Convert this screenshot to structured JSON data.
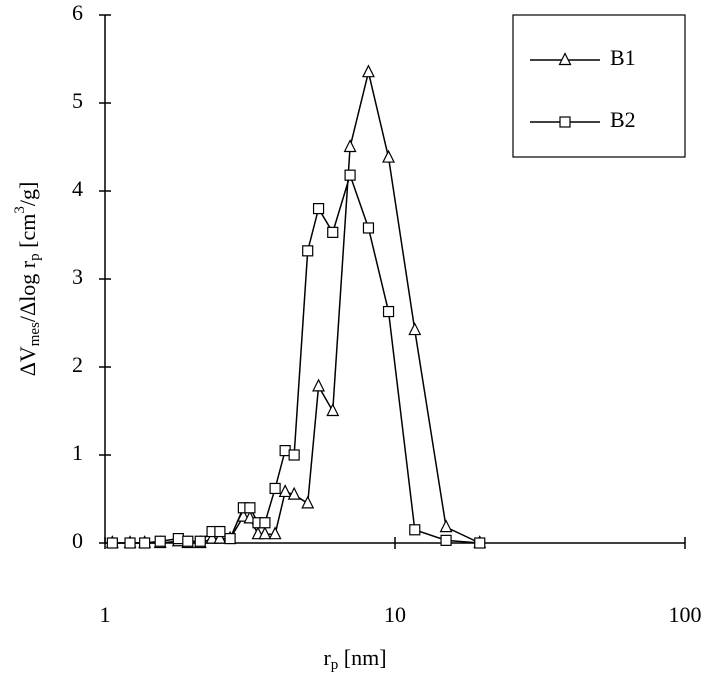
{
  "chart_data": {
    "type": "line",
    "x_label": [
      "r",
      "p",
      " [nm]"
    ],
    "y_label": [
      "ΔV",
      "mes",
      "/Δlog r",
      "p",
      " [cm",
      "3",
      "/g]"
    ],
    "xscale": "log",
    "xlim": [
      1,
      100
    ],
    "xticks": [
      1,
      10,
      100
    ],
    "ylim": [
      0,
      6
    ],
    "yticks": [
      0,
      1,
      2,
      3,
      4,
      5,
      6
    ],
    "legend": "top-right",
    "x": [
      1.06,
      1.22,
      1.37,
      1.55,
      1.79,
      1.93,
      2.13,
      2.34,
      2.49,
      2.7,
      3.0,
      3.16,
      3.37,
      3.56,
      3.86,
      4.18,
      4.49,
      5.0,
      5.45,
      6.1,
      7.0,
      8.1,
      9.5,
      11.7,
      15,
      19.6
    ],
    "series": [
      {
        "name": "B1",
        "color": "#000000",
        "marker": "triangle",
        "values": [
          0,
          0,
          0,
          0,
          0.02,
          0,
          0,
          0.05,
          0.05,
          0.05,
          0.3,
          0.28,
          0.1,
          0.1,
          0.1,
          0.58,
          0.55,
          0.45,
          1.78,
          1.5,
          4.5,
          5.35,
          4.38,
          2.42,
          0.18,
          0
        ]
      },
      {
        "name": "B2",
        "color": "#000000",
        "marker": "square",
        "values": [
          0,
          0,
          0,
          0.02,
          0.05,
          0.02,
          0.02,
          0.13,
          0.13,
          0.05,
          0.4,
          0.4,
          0.23,
          0.23,
          0.62,
          1.05,
          1.0,
          3.32,
          3.8,
          3.53,
          4.18,
          3.58,
          2.63,
          0.15,
          0.03,
          0
        ]
      }
    ]
  }
}
